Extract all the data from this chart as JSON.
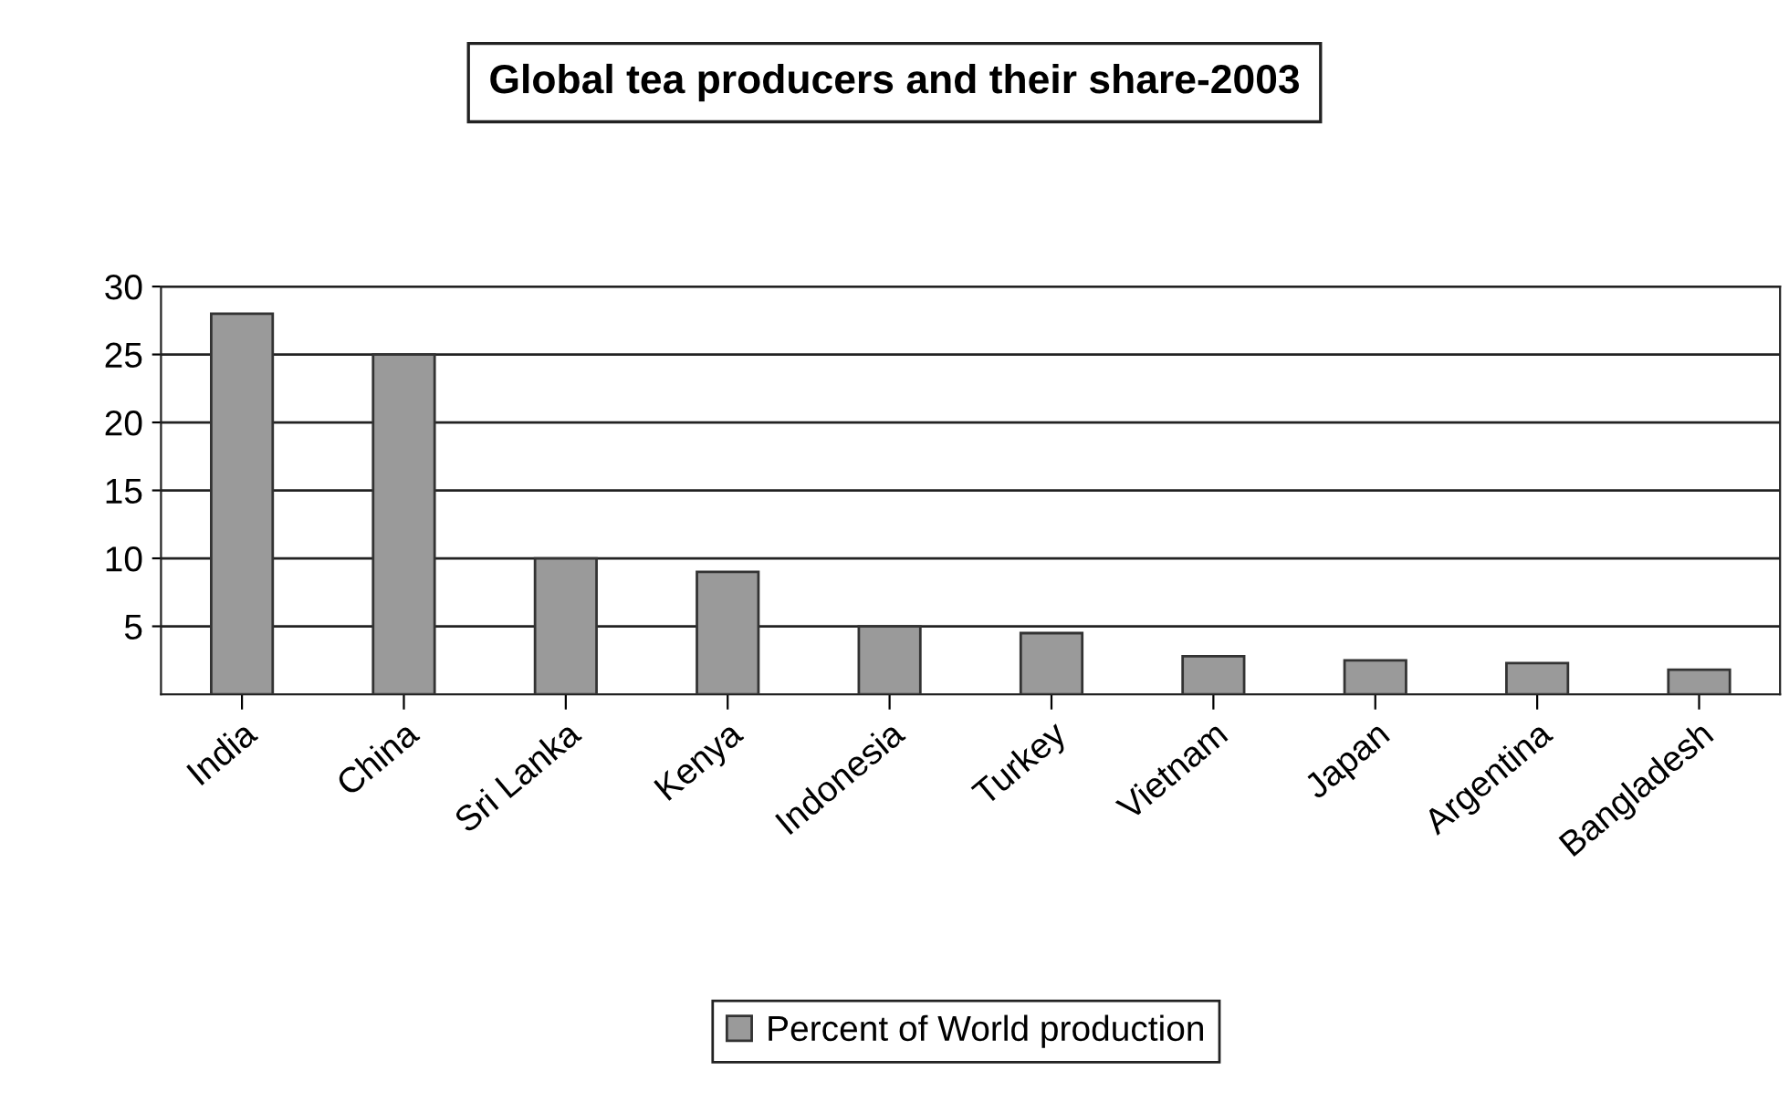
{
  "chart_data": {
    "type": "bar",
    "title": "Global tea producers and their share-2003",
    "categories": [
      "India",
      "China",
      "Sri Lanka",
      "Kenya",
      "Indonesia",
      "Turkey",
      "Vietnam",
      "Japan",
      "Argentina",
      "Bangladesh"
    ],
    "series": [
      {
        "name": "Percent of World production",
        "color": "#9a9a9a",
        "values": [
          28,
          25,
          10,
          9,
          5,
          4.5,
          2.8,
          2.5,
          2.3,
          1.8
        ]
      }
    ],
    "ylim": [
      0,
      30
    ],
    "yticks": [
      5,
      10,
      15,
      20,
      25,
      30
    ],
    "grid": "y",
    "legend": "bottom"
  }
}
